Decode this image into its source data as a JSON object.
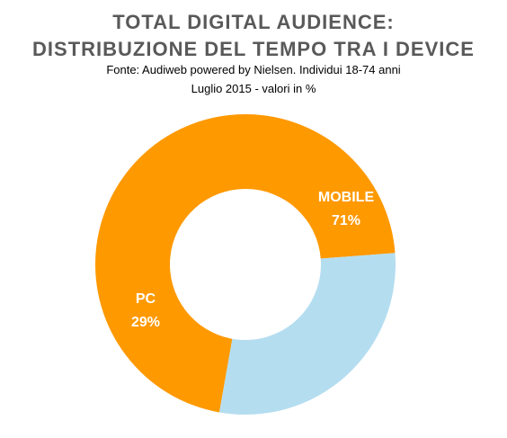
{
  "chart_data": {
    "type": "pie",
    "variant": "donut",
    "title_lines": [
      "TOTAL DIGITAL AUDIENCE:",
      "DISTRIBUZIONE  DEL TEMPO TRA I DEVICE"
    ],
    "subtitle_lines": [
      "Fonte: Audiweb powered by Nielsen. Individui 18-74 anni",
      "Luglio 2015 - valori in %"
    ],
    "slices": [
      {
        "name": "MOBILE",
        "value": 71,
        "label": "71%",
        "color": "#FF9900"
      },
      {
        "name": "PC",
        "value": 29,
        "label": "29%",
        "color": "#B4DDF0"
      }
    ],
    "start_angle_deg": 190,
    "legend": "none"
  }
}
